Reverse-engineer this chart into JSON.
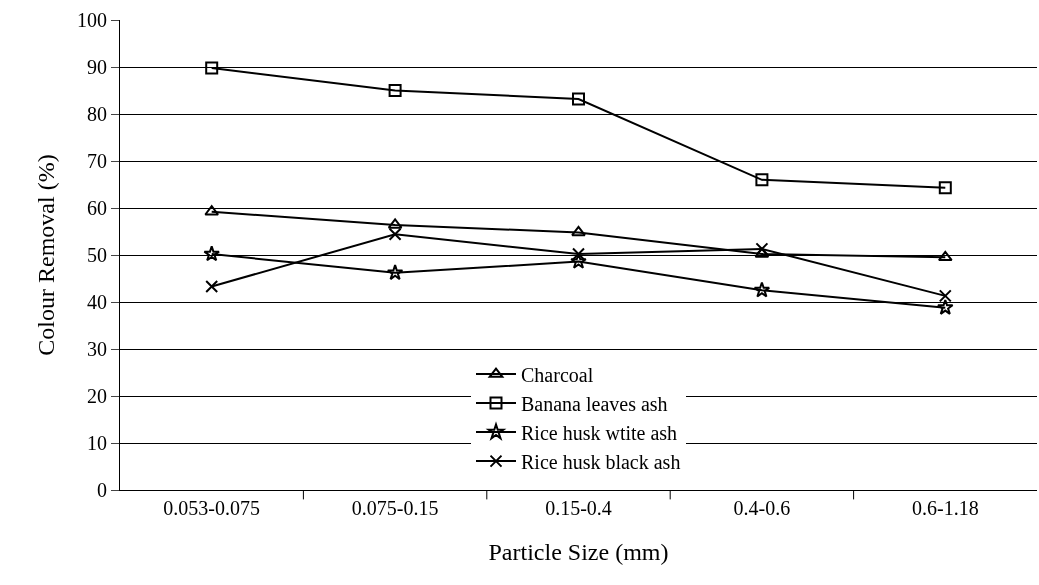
{
  "chart_data": {
    "type": "line",
    "xlabel": "Particle Size (mm)",
    "ylabel": "Colour Removal (%)",
    "categories": [
      "0.053-0.075",
      "0.075-0.15",
      "0.15-0.4",
      "0.4-0.6",
      "0.6-1.18"
    ],
    "series": [
      {
        "name": "Charcoal",
        "color": "#000000",
        "marker": "triangle",
        "values": [
          59.2,
          56.4,
          54.8,
          50.2,
          49.5
        ]
      },
      {
        "name": "Banana leaves ash",
        "color": "#000000",
        "marker": "square",
        "values": [
          89.8,
          85,
          83.2,
          66,
          64.3
        ]
      },
      {
        "name": "Rice husk wtite ash",
        "color": "#000000",
        "marker": "star",
        "values": [
          50.2,
          46.2,
          48.6,
          42.5,
          38.8
        ]
      },
      {
        "name": "Rice husk black ash",
        "color": "#000000",
        "marker": "cross",
        "values": [
          43.3,
          54.4,
          50.2,
          51.3,
          41.3
        ]
      }
    ],
    "ylim": [
      0,
      100
    ],
    "yticks": [
      0,
      10,
      20,
      30,
      40,
      50,
      60,
      70,
      80,
      90,
      100
    ],
    "grid": "y",
    "legend": "bottom",
    "line_style": "solid"
  }
}
